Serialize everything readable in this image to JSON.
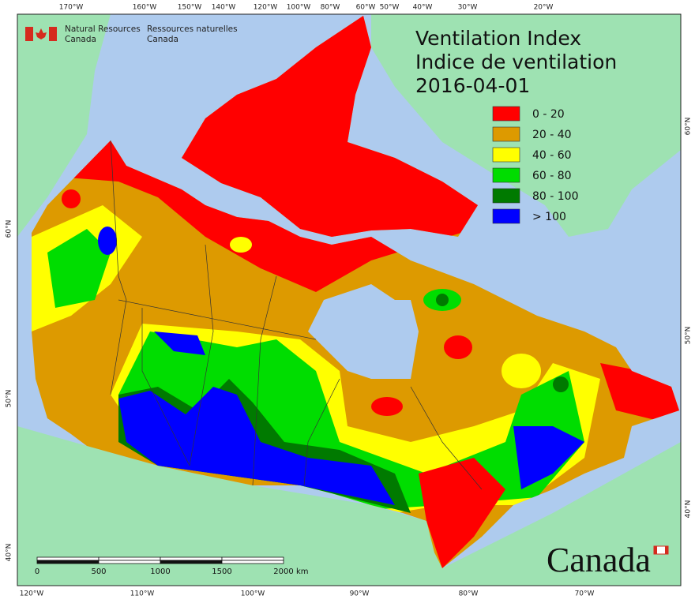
{
  "header": {
    "org_en": [
      "Natural Resources",
      "Canada"
    ],
    "org_fr": [
      "Ressources naturelles",
      "Canada"
    ]
  },
  "title": [
    "Ventilation Index",
    "Indice de ventilation",
    "2016-04-01"
  ],
  "legend": [
    {
      "label": "0 - 20",
      "color": "#ff0000"
    },
    {
      "label": "20 - 40",
      "color": "#dd9a00"
    },
    {
      "label": "40 - 60",
      "color": "#ffff00"
    },
    {
      "label": "60 - 80",
      "color": "#00dd00"
    },
    {
      "label": "80 - 100",
      "color": "#007a00"
    },
    {
      "label": "> 100",
      "color": "#0000ff"
    }
  ],
  "top_labels": [
    "170°W",
    "160°W",
    "150°W",
    "140°W",
    "120°W",
    "100°W",
    "80°W",
    "60°W",
    "50°W",
    "40°W",
    "30°W",
    "20°W"
  ],
  "bottom_labels": [
    "120°W",
    "110°W",
    "100°W",
    "90°W",
    "80°W",
    "70°W"
  ],
  "left_labels": [
    "60°N",
    "50°N",
    "40°N"
  ],
  "right_labels": [
    "60°N",
    "50°N",
    "40°N"
  ],
  "scale": {
    "labels": [
      "0",
      "500",
      "1000",
      "1500",
      "2000"
    ],
    "unit": "km"
  },
  "wordmark": "Canada"
}
